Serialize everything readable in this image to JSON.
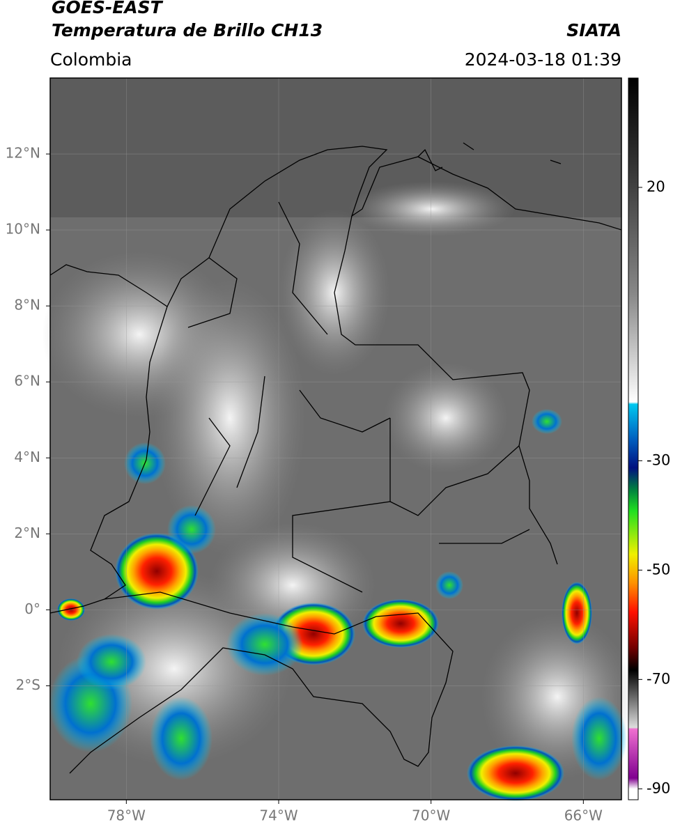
{
  "header": {
    "title": "GOES-EAST",
    "subtitle": "Temperatura de Brillo CH13",
    "source": "SIATA",
    "region": "Colombia",
    "datetime": "2024-03-18 01:39"
  },
  "map": {
    "lonlim": [
      -80,
      -65
    ],
    "latlim": [
      -5,
      14
    ],
    "lonticks": [
      {
        "value": -78,
        "label": "78°W"
      },
      {
        "value": -74,
        "label": "74°W"
      },
      {
        "value": -70,
        "label": "70°W"
      },
      {
        "value": -66,
        "label": "66°W"
      }
    ],
    "latticks": [
      {
        "value": 12,
        "label": "12°N"
      },
      {
        "value": 10,
        "label": "10°N"
      },
      {
        "value": 8,
        "label": "8°N"
      },
      {
        "value": 6,
        "label": "6°N"
      },
      {
        "value": 4,
        "label": "4°N"
      },
      {
        "value": 2,
        "label": "2°N"
      },
      {
        "value": 0,
        "label": "0°"
      },
      {
        "value": -2,
        "label": "2°S"
      }
    ],
    "grid": true
  },
  "colorbar": {
    "lim": [
      -92,
      40
    ],
    "ticks": [
      20,
      -30,
      -50,
      -70,
      -90
    ]
  }
}
